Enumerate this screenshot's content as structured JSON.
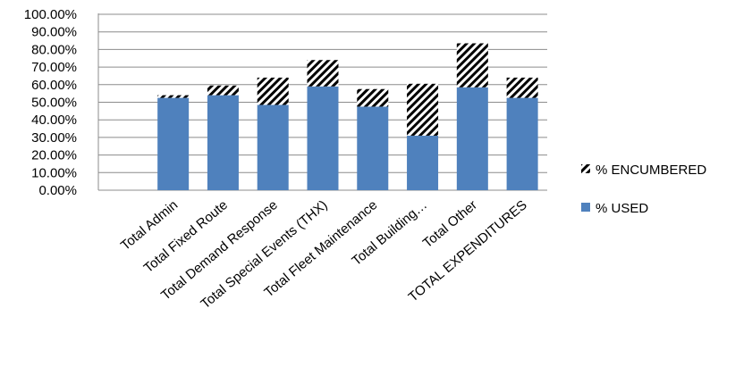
{
  "chart_data": {
    "type": "bar",
    "stacked": true,
    "categories": [
      "",
      "Total Admin",
      "Total Fixed Route",
      "Total Demand Response",
      "Total Special Events (THX)",
      "Total Fleet Maintenance",
      "Total Building…",
      "Total Other",
      "TOTAL EXPENDITURES"
    ],
    "series": [
      {
        "name": "% USED",
        "color": "#4f81bd",
        "pattern": "solid",
        "values": [
          0,
          52.5,
          54.0,
          48.5,
          59.0,
          47.5,
          31.0,
          58.5,
          52.5
        ]
      },
      {
        "name": "% ENCUMBERED",
        "color": "#000000",
        "pattern": "diagonal-hatch",
        "values": [
          0,
          1.5,
          5.5,
          15.5,
          15.0,
          10.0,
          29.5,
          25.0,
          11.5
        ]
      }
    ],
    "y_ticks": [
      "0.00%",
      "10.00%",
      "20.00%",
      "30.00%",
      "40.00%",
      "50.00%",
      "60.00%",
      "70.00%",
      "80.00%",
      "90.00%",
      "100.00%"
    ],
    "ylim": [
      0,
      100
    ],
    "grid": "horizontal",
    "legend_position": "right",
    "legend_order": [
      "% ENCUMBERED",
      "% USED"
    ],
    "title": "",
    "xlabel": "",
    "ylabel": ""
  }
}
